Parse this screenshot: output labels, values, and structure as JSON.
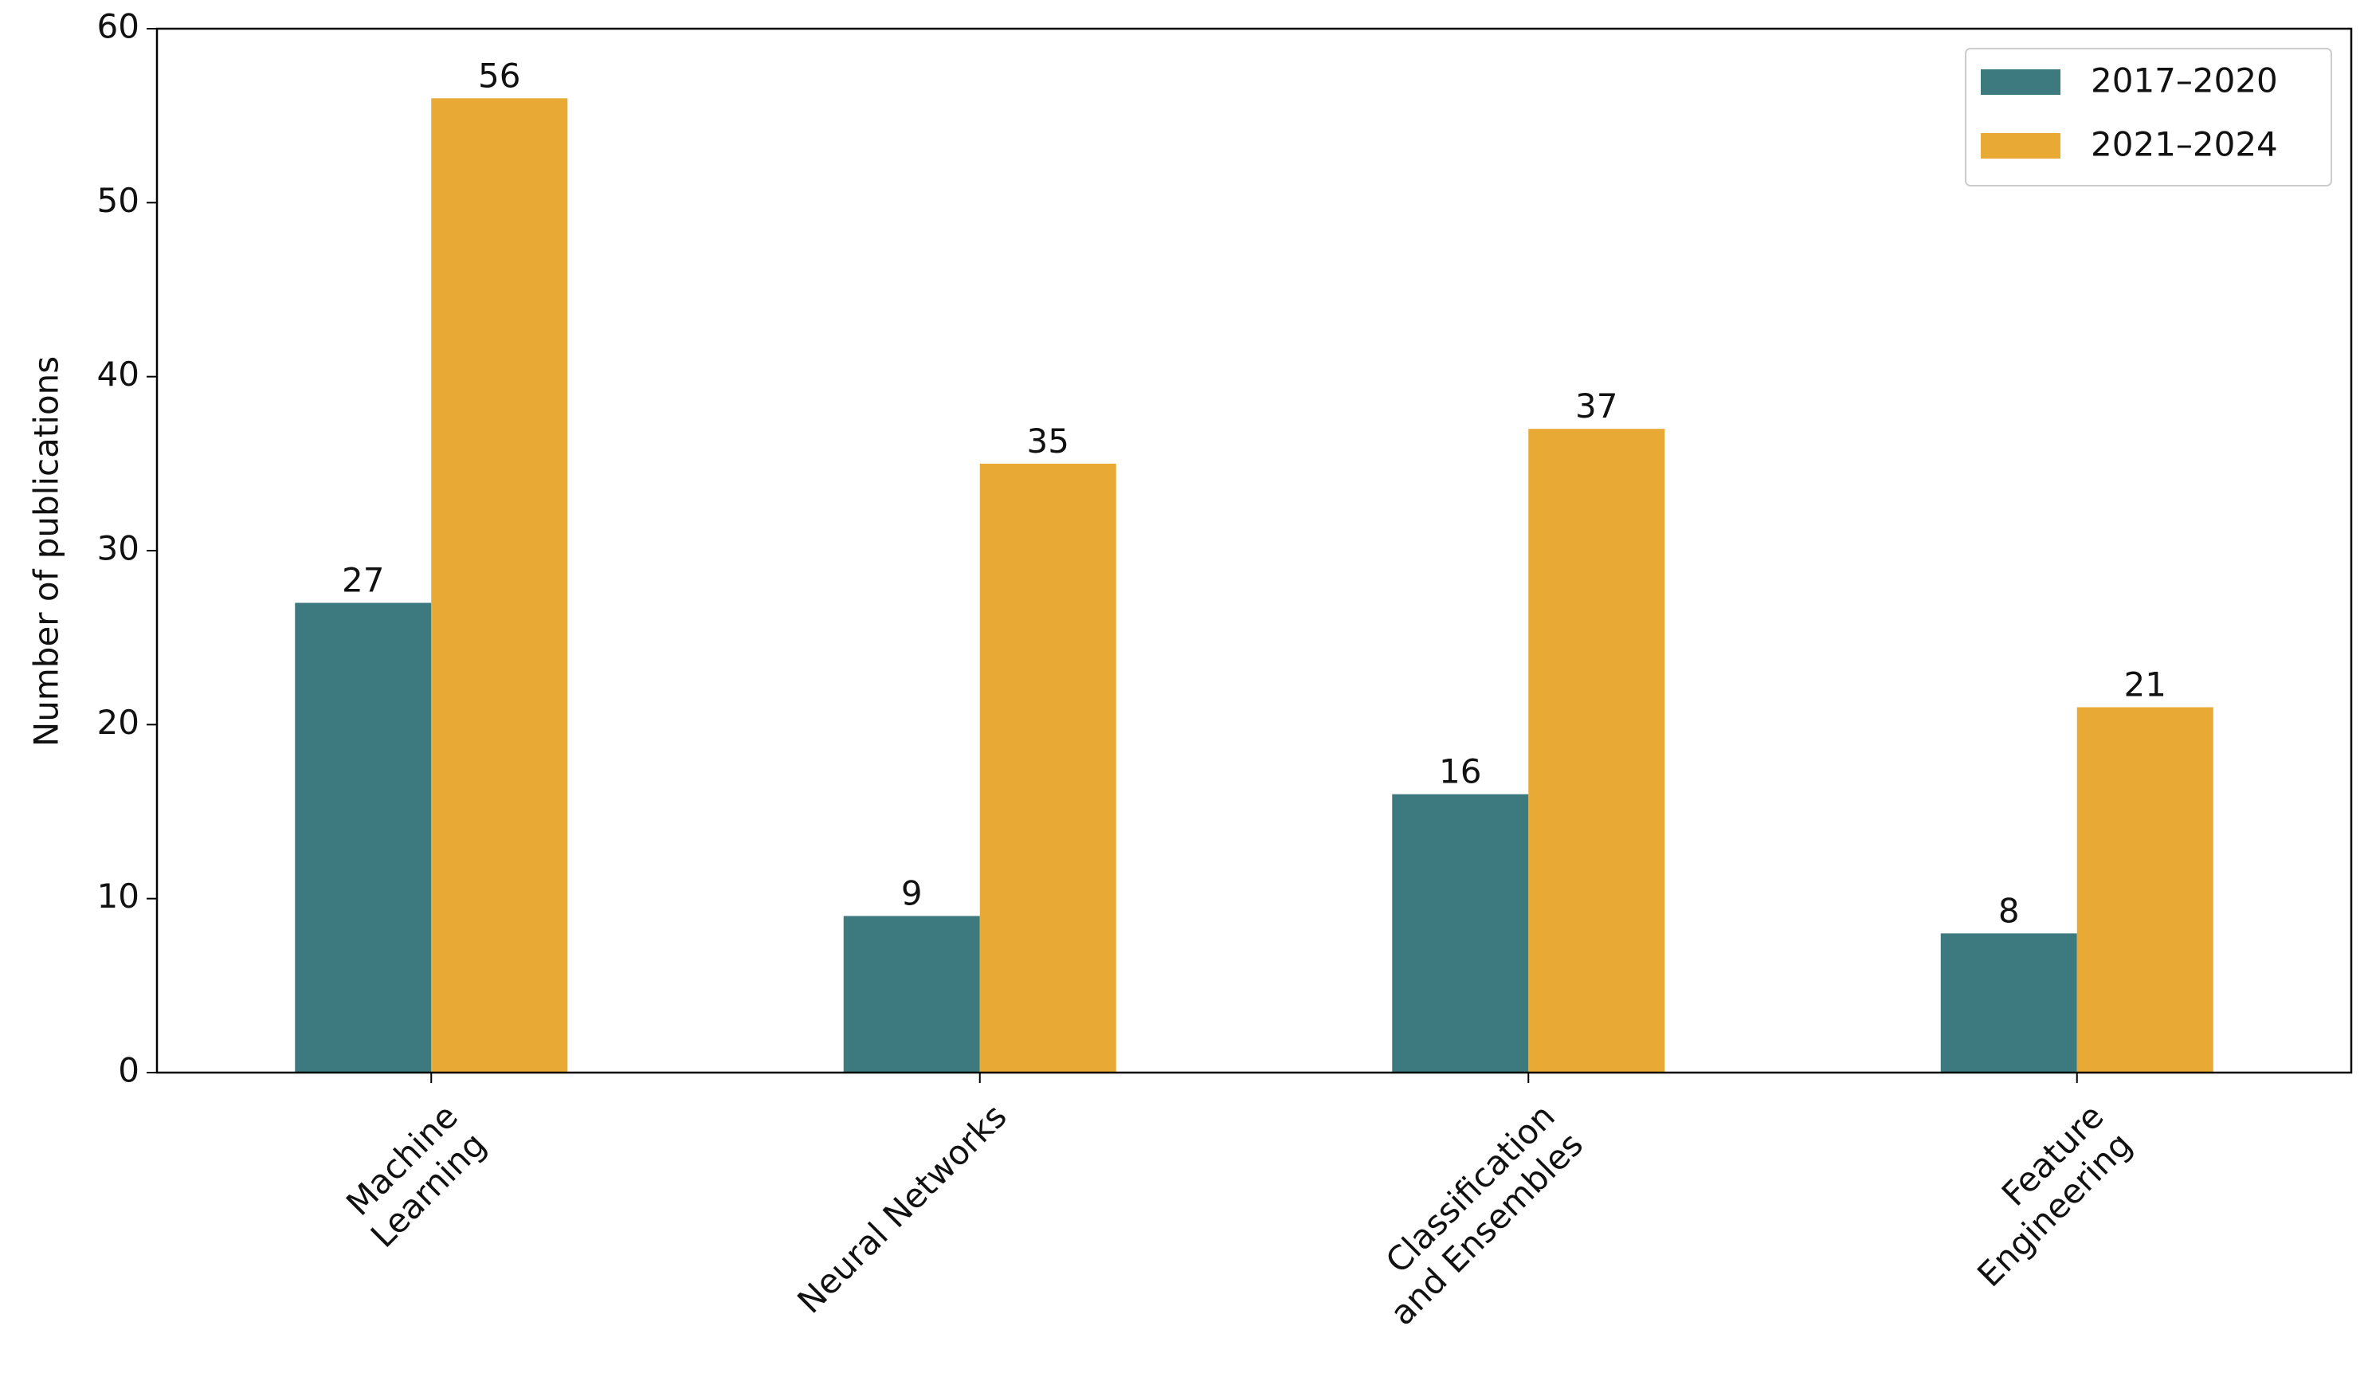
{
  "chart_data": {
    "type": "bar",
    "categories": [
      "Machine\nLearning",
      "Neural Networks",
      "Classification\nand Ensembles",
      "Feature\nEngineering"
    ],
    "series": [
      {
        "name": "2017–2020",
        "color": "#3d7a80",
        "values": [
          27,
          9,
          16,
          8
        ]
      },
      {
        "name": "2021–2024",
        "color": "#e9a935",
        "values": [
          56,
          35,
          37,
          21
        ]
      }
    ],
    "y_label": "Number of publications",
    "ylim": [
      0,
      60
    ],
    "yticks": [
      0,
      10,
      20,
      30,
      40,
      50,
      60
    ],
    "legend": "upper right"
  }
}
